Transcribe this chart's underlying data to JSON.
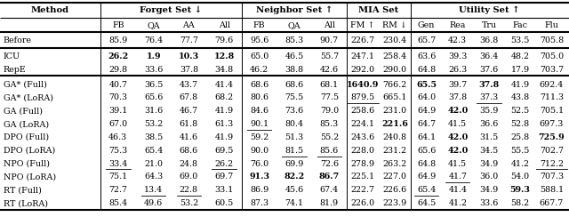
{
  "rows": [
    {
      "method": "Before",
      "values": [
        "85.9",
        "76.4",
        "77.7",
        "79.6",
        "95.6",
        "85.3",
        "90.7",
        "226.7",
        "230.4",
        "65.7",
        "42.3",
        "36.8",
        "53.5",
        "705.8"
      ],
      "bold": [],
      "underline": [],
      "group": "before"
    },
    {
      "method": "ICU",
      "values": [
        "26.2",
        "1.9",
        "10.3",
        "12.8",
        "65.0",
        "46.5",
        "55.7",
        "247.1",
        "258.4",
        "63.6",
        "39.3",
        "36.4",
        "48.2",
        "705.0"
      ],
      "bold": [
        0,
        1,
        2,
        3
      ],
      "underline": [],
      "group": "icu"
    },
    {
      "method": "RepE",
      "values": [
        "29.8",
        "33.6",
        "37.8",
        "34.8",
        "46.2",
        "38.8",
        "42.6",
        "292.0",
        "290.0",
        "64.8",
        "26.3",
        "37.6",
        "17.9",
        "703.7"
      ],
      "bold": [],
      "underline": [],
      "group": "icu"
    },
    {
      "method": "GA* (Full)",
      "values": [
        "40.7",
        "36.5",
        "43.7",
        "41.4",
        "68.6",
        "68.6",
        "68.1",
        "1640.9",
        "766.2",
        "65.5",
        "39.7",
        "37.8",
        "41.9",
        "692.4"
      ],
      "bold": [
        7,
        9,
        11
      ],
      "underline": [],
      "group": "main"
    },
    {
      "method": "GA* (LoRA)",
      "values": [
        "70.3",
        "65.6",
        "67.8",
        "68.2",
        "80.6",
        "75.5",
        "77.5",
        "879.5",
        "665.1",
        "64.0",
        "37.8",
        "37.3",
        "43.8",
        "711.3"
      ],
      "bold": [],
      "underline": [
        7,
        11
      ],
      "group": "main"
    },
    {
      "method": "GA (Full)",
      "values": [
        "39.1",
        "31.6",
        "46.7",
        "41.9",
        "84.6",
        "73.6",
        "79.0",
        "258.6",
        "231.0",
        "64.9",
        "42.0",
        "35.9",
        "52.5",
        "705.1"
      ],
      "bold": [
        10
      ],
      "underline": [],
      "group": "main"
    },
    {
      "method": "GA (LoRA)",
      "values": [
        "67.0",
        "53.2",
        "61.8",
        "61.3",
        "90.1",
        "80.4",
        "85.3",
        "224.1",
        "221.6",
        "64.7",
        "41.5",
        "36.6",
        "52.8",
        "697.3"
      ],
      "bold": [
        8
      ],
      "underline": [
        4
      ],
      "group": "main"
    },
    {
      "method": "DPO (Full)",
      "values": [
        "46.3",
        "38.5",
        "41.6",
        "41.9",
        "59.2",
        "51.3",
        "55.2",
        "243.6",
        "240.8",
        "64.1",
        "42.0",
        "31.5",
        "25.8",
        "725.9"
      ],
      "bold": [
        10,
        13
      ],
      "underline": [],
      "group": "main"
    },
    {
      "method": "DPO (LoRA)",
      "values": [
        "75.3",
        "65.4",
        "68.6",
        "69.5",
        "90.0",
        "81.5",
        "85.6",
        "228.0",
        "231.2",
        "65.6",
        "42.0",
        "34.5",
        "55.5",
        "702.7"
      ],
      "bold": [
        10
      ],
      "underline": [
        5,
        6
      ],
      "group": "main"
    },
    {
      "method": "NPO (Full)",
      "values": [
        "33.4",
        "21.0",
        "24.8",
        "26.2",
        "76.0",
        "69.9",
        "72.6",
        "278.9",
        "263.2",
        "64.8",
        "41.5",
        "34.9",
        "41.2",
        "712.2"
      ],
      "bold": [],
      "underline": [
        0,
        3,
        13
      ],
      "group": "main"
    },
    {
      "method": "NPO (LoRA)",
      "values": [
        "75.1",
        "64.3",
        "69.0",
        "69.7",
        "91.3",
        "82.2",
        "86.7",
        "225.1",
        "227.0",
        "64.9",
        "41.7",
        "36.0",
        "54.0",
        "707.3"
      ],
      "bold": [
        4,
        5,
        6
      ],
      "underline": [
        10
      ],
      "group": "main"
    },
    {
      "method": "RT (Full)",
      "values": [
        "72.7",
        "13.4",
        "22.8",
        "33.1",
        "86.9",
        "45.6",
        "67.4",
        "222.7",
        "226.6",
        "65.4",
        "41.4",
        "34.9",
        "59.3",
        "588.1"
      ],
      "bold": [
        12
      ],
      "underline": [
        1,
        2,
        9
      ],
      "group": "main"
    },
    {
      "method": "RT (LoRA)",
      "values": [
        "85.4",
        "49.6",
        "53.2",
        "60.5",
        "87.3",
        "74.1",
        "81.9",
        "226.0",
        "223.9",
        "64.5",
        "41.2",
        "33.6",
        "58.2",
        "667.7"
      ],
      "bold": [],
      "underline": [
        8,
        12
      ],
      "group": "main"
    }
  ],
  "col_headers": [
    "FB",
    "QA",
    "AA",
    "All",
    "FB",
    "QA",
    "All",
    "FM ↑",
    "RM ↓",
    "Gen",
    "Rea",
    "Tru",
    "Fac",
    "Flu"
  ],
  "group_headers": [
    {
      "label": "Forget Set ↓",
      "start": 1,
      "end": 4
    },
    {
      "label": "Neighbor Set ↑",
      "start": 5,
      "end": 7
    },
    {
      "label": "MIA Set",
      "start": 8,
      "end": 9
    },
    {
      "label": "Utility Set ↑",
      "start": 10,
      "end": 14
    }
  ],
  "font_family": "DejaVu Serif",
  "fontsize": 6.8,
  "header_fontsize": 7.2,
  "bg_color": "#ffffff"
}
